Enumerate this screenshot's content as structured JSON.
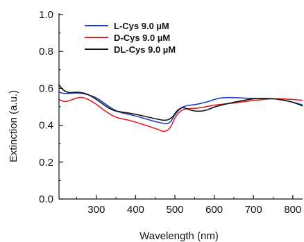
{
  "chart_data": {
    "type": "line",
    "xlabel": "Wavelength (nm)",
    "ylabel": "Extinction (a.u.)",
    "xlim": [
      205,
      825
    ],
    "ylim": [
      0.0,
      1.0
    ],
    "x_ticks": [
      300,
      400,
      500,
      600,
      700,
      800
    ],
    "x_tick_labels": [
      "300",
      "400",
      "500",
      "600",
      "700",
      "800"
    ],
    "y_ticks": [
      0.0,
      0.2,
      0.4,
      0.6,
      0.8,
      1.0
    ],
    "y_tick_labels": [
      "0.0",
      "0.2",
      "0.4",
      "0.6",
      "0.8",
      "1.0"
    ],
    "grid": false,
    "legend_position": "top-left",
    "series": [
      {
        "name": "L-Cys 9.0 µM",
        "color": "#1f3fbf",
        "x": [
          205,
          220,
          240,
          260,
          280,
          300,
          320,
          350,
          380,
          410,
          440,
          460,
          480,
          490,
          500,
          520,
          550,
          580,
          600,
          620,
          650,
          700,
          750,
          780,
          800,
          825
        ],
        "y": [
          0.58,
          0.57,
          0.575,
          0.575,
          0.565,
          0.55,
          0.52,
          0.475,
          0.46,
          0.445,
          0.425,
          0.415,
          0.405,
          0.42,
          0.46,
          0.505,
          0.51,
          0.525,
          0.54,
          0.55,
          0.55,
          0.545,
          0.545,
          0.535,
          0.525,
          0.51
        ]
      },
      {
        "name": "D-Cys 9.0 µM",
        "color": "#e02020",
        "x": [
          205,
          220,
          240,
          260,
          280,
          300,
          320,
          350,
          380,
          410,
          440,
          460,
          470,
          480,
          490,
          500,
          520,
          550,
          580,
          600,
          650,
          700,
          750,
          800,
          825
        ],
        "y": [
          0.54,
          0.525,
          0.54,
          0.555,
          0.54,
          0.515,
          0.48,
          0.44,
          0.43,
          0.41,
          0.39,
          0.375,
          0.365,
          0.37,
          0.39,
          0.445,
          0.49,
          0.49,
          0.5,
          0.51,
          0.52,
          0.535,
          0.545,
          0.54,
          0.535
        ]
      },
      {
        "name": "DL-Cys 9.0 µM",
        "color": "#111111",
        "x": [
          205,
          215,
          230,
          250,
          270,
          290,
          310,
          340,
          370,
          400,
          430,
          460,
          480,
          495,
          505,
          520,
          540,
          560,
          580,
          600,
          650,
          700,
          750,
          780,
          800,
          825
        ],
        "y": [
          0.62,
          0.59,
          0.575,
          0.58,
          0.575,
          0.555,
          0.525,
          0.48,
          0.47,
          0.46,
          0.445,
          0.43,
          0.425,
          0.445,
          0.48,
          0.5,
          0.48,
          0.475,
          0.48,
          0.5,
          0.525,
          0.545,
          0.545,
          0.535,
          0.525,
          0.505
        ]
      }
    ]
  }
}
